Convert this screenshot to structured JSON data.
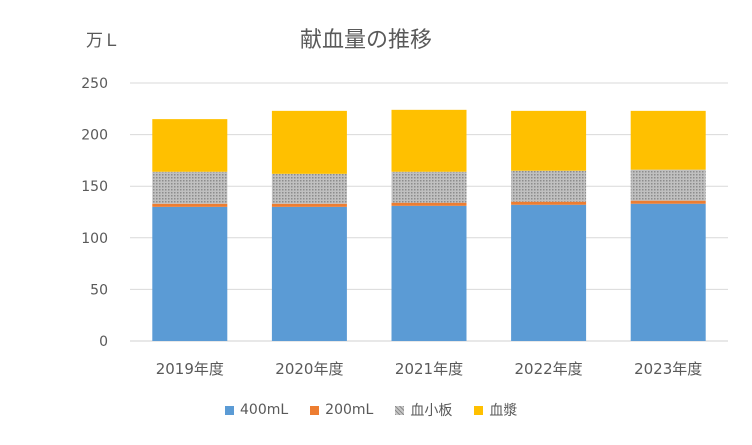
{
  "chart_data": {
    "type": "bar",
    "stacked": true,
    "title": "献血量の推移",
    "ylabel": "万Ｌ",
    "ylim": [
      0,
      250
    ],
    "yticks": [
      0,
      50,
      100,
      150,
      200,
      250
    ],
    "grid": true,
    "legend_position": "bottom",
    "categories": [
      "2019年度",
      "2020年度",
      "2021年度",
      "2022年度",
      "2023年度"
    ],
    "series": [
      {
        "name": "400mL",
        "color": "#5B9BD5",
        "pattern": "solid",
        "values": [
          130,
          130,
          131,
          132,
          133
        ]
      },
      {
        "name": "200mL",
        "color": "#ED7D31",
        "pattern": "solid",
        "values": [
          3,
          3,
          3,
          3,
          3
        ]
      },
      {
        "name": "血小板",
        "color": "#A5A5A5",
        "pattern": "dotted",
        "values": [
          31,
          29,
          30,
          30,
          30
        ]
      },
      {
        "name": "血漿",
        "color": "#FFC000",
        "pattern": "solid",
        "values": [
          51,
          61,
          60,
          58,
          57
        ]
      }
    ]
  }
}
